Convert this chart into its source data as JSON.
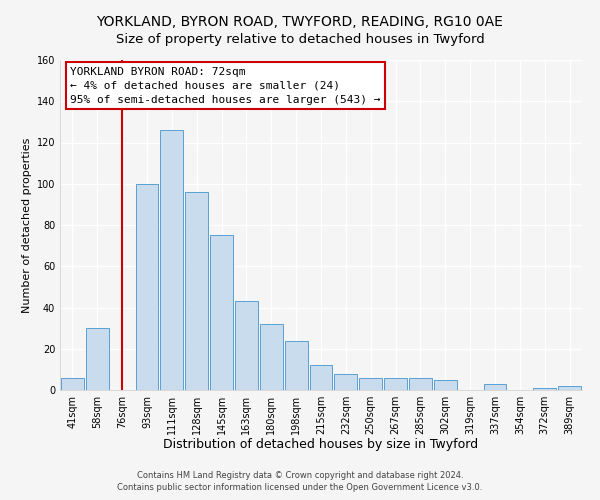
{
  "title": "YORKLAND, BYRON ROAD, TWYFORD, READING, RG10 0AE",
  "subtitle": "Size of property relative to detached houses in Twyford",
  "xlabel": "Distribution of detached houses by size in Twyford",
  "ylabel": "Number of detached properties",
  "bar_labels": [
    "41sqm",
    "58sqm",
    "76sqm",
    "93sqm",
    "111sqm",
    "128sqm",
    "145sqm",
    "163sqm",
    "180sqm",
    "198sqm",
    "215sqm",
    "232sqm",
    "250sqm",
    "267sqm",
    "285sqm",
    "302sqm",
    "319sqm",
    "337sqm",
    "354sqm",
    "372sqm",
    "389sqm"
  ],
  "bar_values": [
    6,
    30,
    0,
    100,
    126,
    96,
    75,
    43,
    32,
    24,
    12,
    8,
    6,
    6,
    6,
    5,
    0,
    3,
    0,
    1,
    2
  ],
  "bar_color": "#c8dcee",
  "bar_edge_color": "#5a9fd4",
  "vline_x": 2,
  "vline_color": "#cc0000",
  "ylim": [
    0,
    160
  ],
  "yticks": [
    0,
    20,
    40,
    60,
    80,
    100,
    120,
    140,
    160
  ],
  "annotation_title": "YORKLAND BYRON ROAD: 72sqm",
  "annotation_line1": "← 4% of detached houses are smaller (24)",
  "annotation_line2": "95% of semi-detached houses are larger (543) →",
  "annotation_box_color": "white",
  "annotation_box_edge": "#cc0000",
  "footer1": "Contains HM Land Registry data © Crown copyright and database right 2024.",
  "footer2": "Contains public sector information licensed under the Open Government Licence v3.0.",
  "background_color": "#f5f5f5",
  "plot_bg_color": "#f5f5f5",
  "grid_color": "#ffffff",
  "title_fontsize": 10,
  "subtitle_fontsize": 9.5,
  "xlabel_fontsize": 9,
  "ylabel_fontsize": 8,
  "tick_fontsize": 7,
  "footer_fontsize": 6,
  "ann_fontsize": 8
}
